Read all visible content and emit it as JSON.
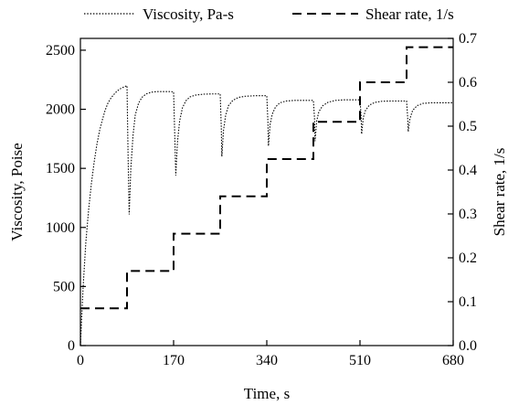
{
  "chart_data": {
    "type": "line",
    "x_label": "Time, s",
    "y_left_label": "Viscosity, Poise",
    "y_right_label": "Shear rate, 1/s",
    "x_ticks": [
      0,
      170,
      340,
      510,
      680
    ],
    "y_left_ticks": [
      0,
      500,
      1000,
      1500,
      2000,
      2500
    ],
    "y_right_ticks": [
      "0.0",
      "0.1",
      "0.2",
      "0.3",
      "0.4",
      "0.5",
      "0.6",
      "0.7"
    ],
    "xlim": [
      0,
      680
    ],
    "y_left_lim": [
      0,
      2600
    ],
    "y_right_lim": [
      0,
      0.7
    ],
    "grid": false,
    "legend_position": "top",
    "series": [
      {
        "name": "Viscosity, Pa-s",
        "axis": "left",
        "style": "dotted",
        "color": "#000000",
        "points": [
          [
            0,
            0
          ],
          [
            5,
            500
          ],
          [
            10,
            880
          ],
          [
            15,
            1150
          ],
          [
            20,
            1370
          ],
          [
            25,
            1550
          ],
          [
            30,
            1700
          ],
          [
            35,
            1820
          ],
          [
            40,
            1910
          ],
          [
            45,
            1990
          ],
          [
            50,
            2050
          ],
          [
            55,
            2090
          ],
          [
            60,
            2120
          ],
          [
            65,
            2145
          ],
          [
            70,
            2165
          ],
          [
            75,
            2180
          ],
          [
            80,
            2190
          ],
          [
            85,
            2200
          ],
          [
            87,
            1600
          ],
          [
            89,
            1110
          ],
          [
            92,
            1500
          ],
          [
            96,
            1780
          ],
          [
            100,
            1950
          ],
          [
            106,
            2050
          ],
          [
            112,
            2100
          ],
          [
            120,
            2130
          ],
          [
            130,
            2145
          ],
          [
            140,
            2150
          ],
          [
            150,
            2150
          ],
          [
            160,
            2150
          ],
          [
            170,
            2148
          ],
          [
            172,
            1800
          ],
          [
            174,
            1440
          ],
          [
            177,
            1720
          ],
          [
            181,
            1900
          ],
          [
            186,
            2010
          ],
          [
            192,
            2070
          ],
          [
            200,
            2105
          ],
          [
            210,
            2120
          ],
          [
            225,
            2128
          ],
          [
            240,
            2130
          ],
          [
            255,
            2130
          ],
          [
            257,
            1850
          ],
          [
            258,
            1600
          ],
          [
            261,
            1820
          ],
          [
            265,
            1950
          ],
          [
            270,
            2030
          ],
          [
            278,
            2075
          ],
          [
            288,
            2100
          ],
          [
            300,
            2110
          ],
          [
            320,
            2115
          ],
          [
            340,
            2115
          ],
          [
            342,
            1900
          ],
          [
            343,
            1690
          ],
          [
            346,
            1870
          ],
          [
            350,
            1960
          ],
          [
            356,
            2020
          ],
          [
            364,
            2055
          ],
          [
            375,
            2070
          ],
          [
            390,
            2075
          ],
          [
            405,
            2075
          ],
          [
            425,
            2075
          ],
          [
            427,
            1930
          ],
          [
            428,
            1730
          ],
          [
            431,
            1900
          ],
          [
            435,
            1980
          ],
          [
            442,
            2030
          ],
          [
            452,
            2060
          ],
          [
            465,
            2075
          ],
          [
            480,
            2080
          ],
          [
            495,
            2080
          ],
          [
            510,
            2080
          ],
          [
            512,
            1950
          ],
          [
            513,
            1790
          ],
          [
            516,
            1930
          ],
          [
            520,
            1990
          ],
          [
            527,
            2035
          ],
          [
            537,
            2058
          ],
          [
            550,
            2068
          ],
          [
            565,
            2070
          ],
          [
            580,
            2070
          ],
          [
            595,
            2070
          ],
          [
            597,
            1930
          ],
          [
            598,
            1810
          ],
          [
            601,
            1920
          ],
          [
            606,
            1990
          ],
          [
            614,
            2030
          ],
          [
            625,
            2050
          ],
          [
            640,
            2055
          ],
          [
            660,
            2055
          ],
          [
            680,
            2055
          ]
        ]
      },
      {
        "name": "Shear rate, 1/s",
        "axis": "right",
        "style": "dashed",
        "color": "#000000",
        "points": [
          [
            0,
            0.085
          ],
          [
            85,
            0.085
          ],
          [
            85,
            0.17
          ],
          [
            170,
            0.17
          ],
          [
            170,
            0.255
          ],
          [
            255,
            0.255
          ],
          [
            255,
            0.34
          ],
          [
            340,
            0.34
          ],
          [
            340,
            0.425
          ],
          [
            425,
            0.425
          ],
          [
            425,
            0.51
          ],
          [
            510,
            0.51
          ],
          [
            510,
            0.6
          ],
          [
            595,
            0.6
          ],
          [
            595,
            0.68
          ],
          [
            680,
            0.68
          ]
        ]
      }
    ]
  }
}
